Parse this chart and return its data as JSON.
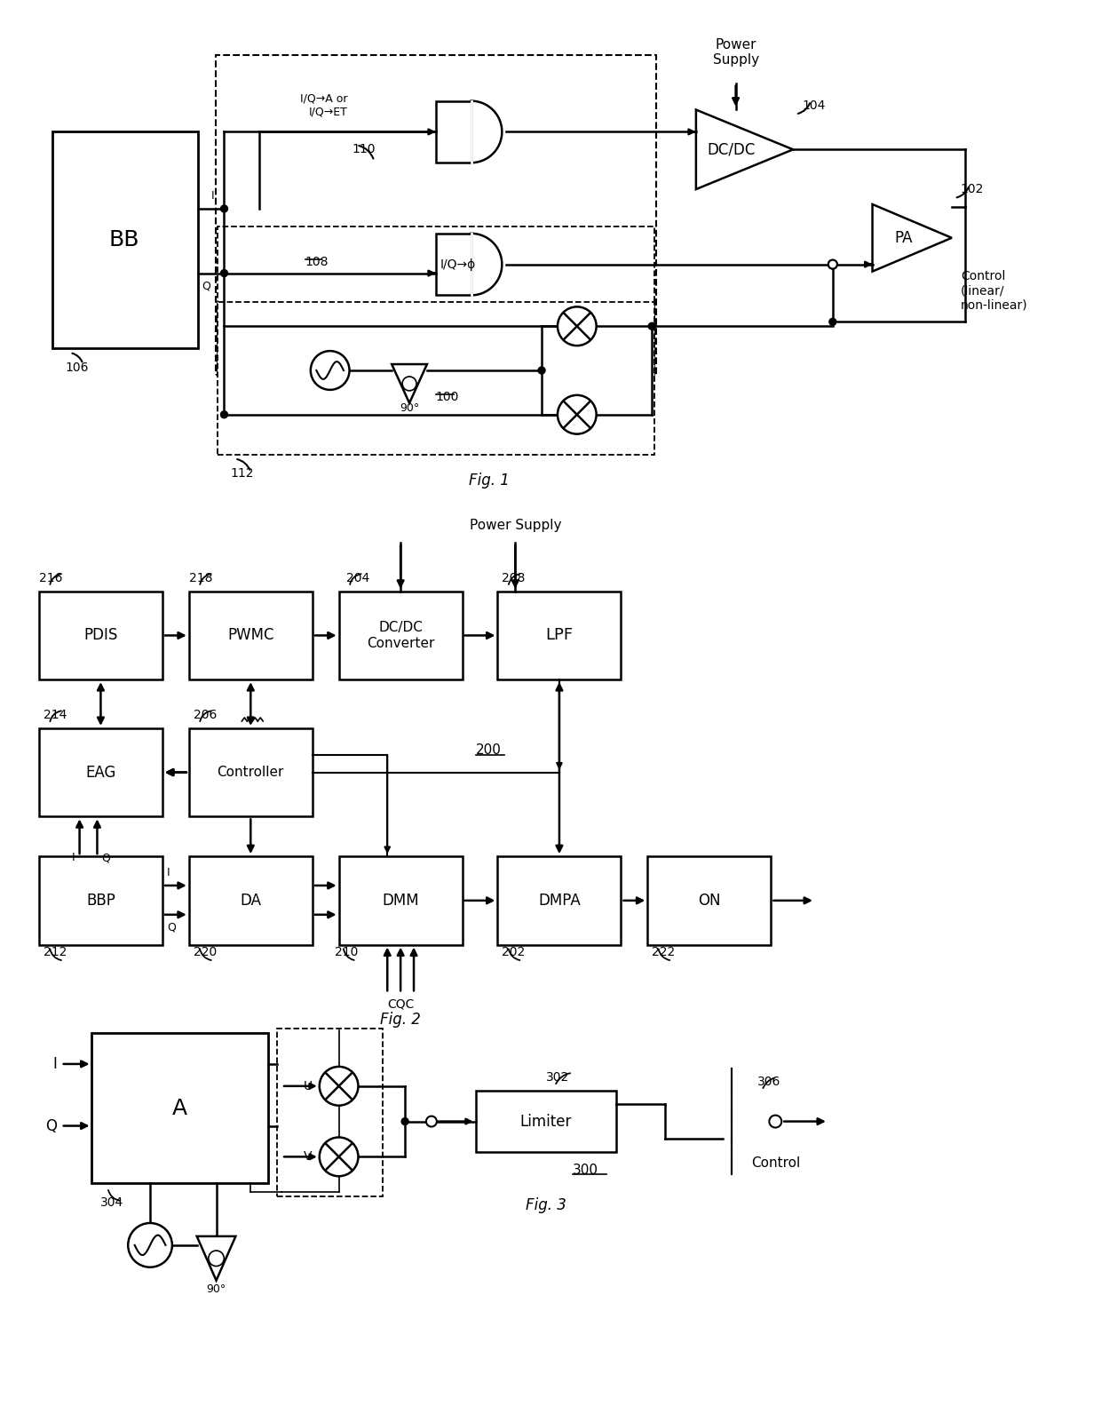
{
  "bg_color": "#ffffff",
  "line_color": "#000000",
  "fig1": {
    "title": "Fig. 1",
    "text_power_supply": "Power\nSupply",
    "text_dcdc": "DC/DC",
    "text_pa": "PA",
    "text_bb": "BB",
    "text_iq_a_et": "I/Q→A or\nI/Q→ET",
    "text_iq_phi": "I/Q→ϕ",
    "text_control": "Control\n(linear/\nnon-linear)",
    "text_90deg": "90°",
    "labels": {
      "100": "100",
      "102": "102",
      "104": "104",
      "106": "106",
      "108": "108",
      "110": "110",
      "112": "112"
    }
  },
  "fig2": {
    "title": "Fig. 2",
    "text_power_supply": "Power Supply",
    "text_pdis": "PDIS",
    "text_pwmc": "PWMC",
    "text_dcdc": "DC/DC\nConverter",
    "text_lpf": "LPF",
    "text_eag": "EAG",
    "text_controller": "Controller",
    "text_bbp": "BBP",
    "text_da": "DA",
    "text_dmm": "DMM",
    "text_dmpa": "DMPA",
    "text_on": "ON",
    "text_cqc": "CQC",
    "labels": {
      "200": "200",
      "202": "202",
      "204": "204",
      "206": "206",
      "208": "208",
      "210": "210",
      "212": "212",
      "214": "214",
      "216": "216",
      "218": "218",
      "220": "220",
      "222": "222"
    }
  },
  "fig3": {
    "title": "Fig. 3",
    "text_a": "A",
    "text_limiter": "Limiter",
    "text_control": "Control",
    "text_90deg": "90°",
    "text_i": "I",
    "text_q": "Q",
    "text_u": "U",
    "text_v": "V",
    "labels": {
      "300": "300",
      "302": "302",
      "304": "304",
      "306": "306"
    }
  }
}
